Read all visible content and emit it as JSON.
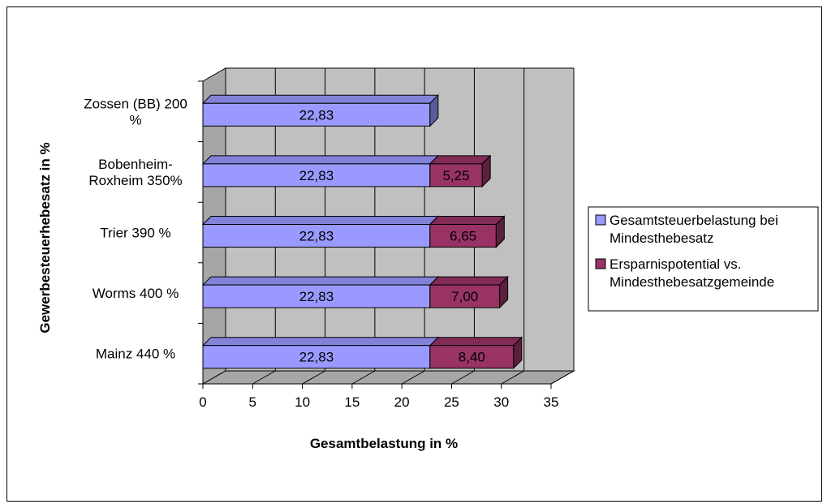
{
  "chart_data": {
    "type": "bar",
    "orientation": "horizontal",
    "stacked": true,
    "three_d": true,
    "categories": [
      "Mainz 440 %",
      "Worms 400 %",
      "Trier 390 %",
      "Bobenheim-Roxheim 350%",
      "Zossen (BB) 200 %"
    ],
    "series": [
      {
        "name": "Gesamtsteuerbelastung bei Mindesthebesatz",
        "values": [
          22.83,
          22.83,
          22.83,
          22.83,
          22.83
        ],
        "labels": [
          "22,83",
          "22,83",
          "22,83",
          "22,83",
          "22,83"
        ],
        "color": "#9999ff"
      },
      {
        "name": "Ersparnispotential vs. Mindesthebesatzgemeinde",
        "values": [
          8.4,
          7.0,
          6.65,
          5.25,
          null
        ],
        "labels": [
          "8,40",
          "7,00",
          "6,65",
          "5,25",
          ""
        ],
        "color": "#993366"
      }
    ],
    "xlabel": "Gesamtbelastung in %",
    "ylabel": "Gewerbesteuerhebesatz in %",
    "xlim": [
      0,
      35
    ],
    "xticks": [
      "0",
      "5",
      "10",
      "15",
      "20",
      "25",
      "30",
      "35"
    ],
    "grid": true,
    "legend_position": "right",
    "wall_color": "#c0c0c0"
  }
}
